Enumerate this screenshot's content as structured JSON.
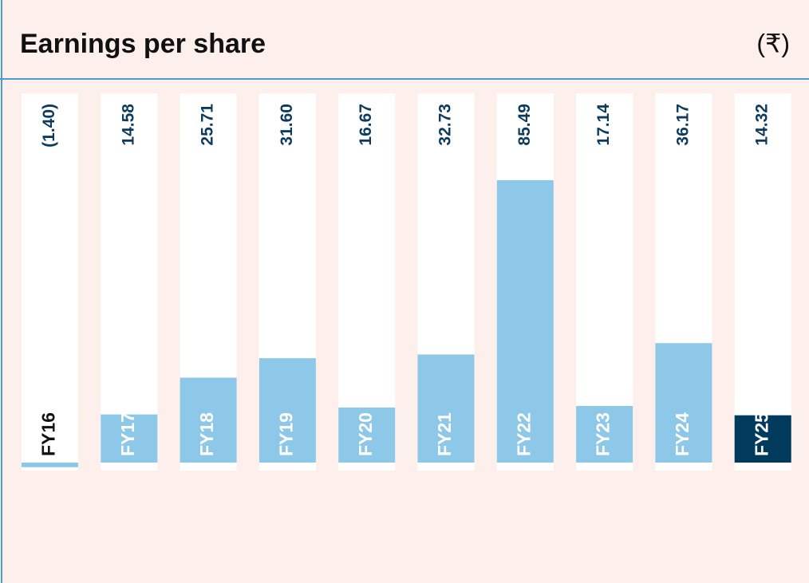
{
  "chart_data": {
    "type": "bar",
    "title": "Earnings per share",
    "subtitle": "(₹)",
    "categories": [
      "FY16",
      "FY17",
      "FY18",
      "FY19",
      "FY20",
      "FY21",
      "FY22",
      "FY23",
      "FY24",
      "FY25"
    ],
    "values": [
      -1.4,
      14.58,
      25.71,
      31.6,
      16.67,
      32.73,
      85.49,
      17.14,
      36.17,
      14.32
    ],
    "value_labels": [
      "(1.40)",
      "14.58",
      "25.71",
      "31.60",
      "16.67",
      "32.73",
      "85.49",
      "17.14",
      "36.17",
      "14.32"
    ],
    "colors": [
      "#8ec8e8",
      "#8ec8e8",
      "#8ec8e8",
      "#8ec8e8",
      "#8ec8e8",
      "#8ec8e8",
      "#8ec8e8",
      "#8ec8e8",
      "#8ec8e8",
      "#003a5c"
    ]
  }
}
